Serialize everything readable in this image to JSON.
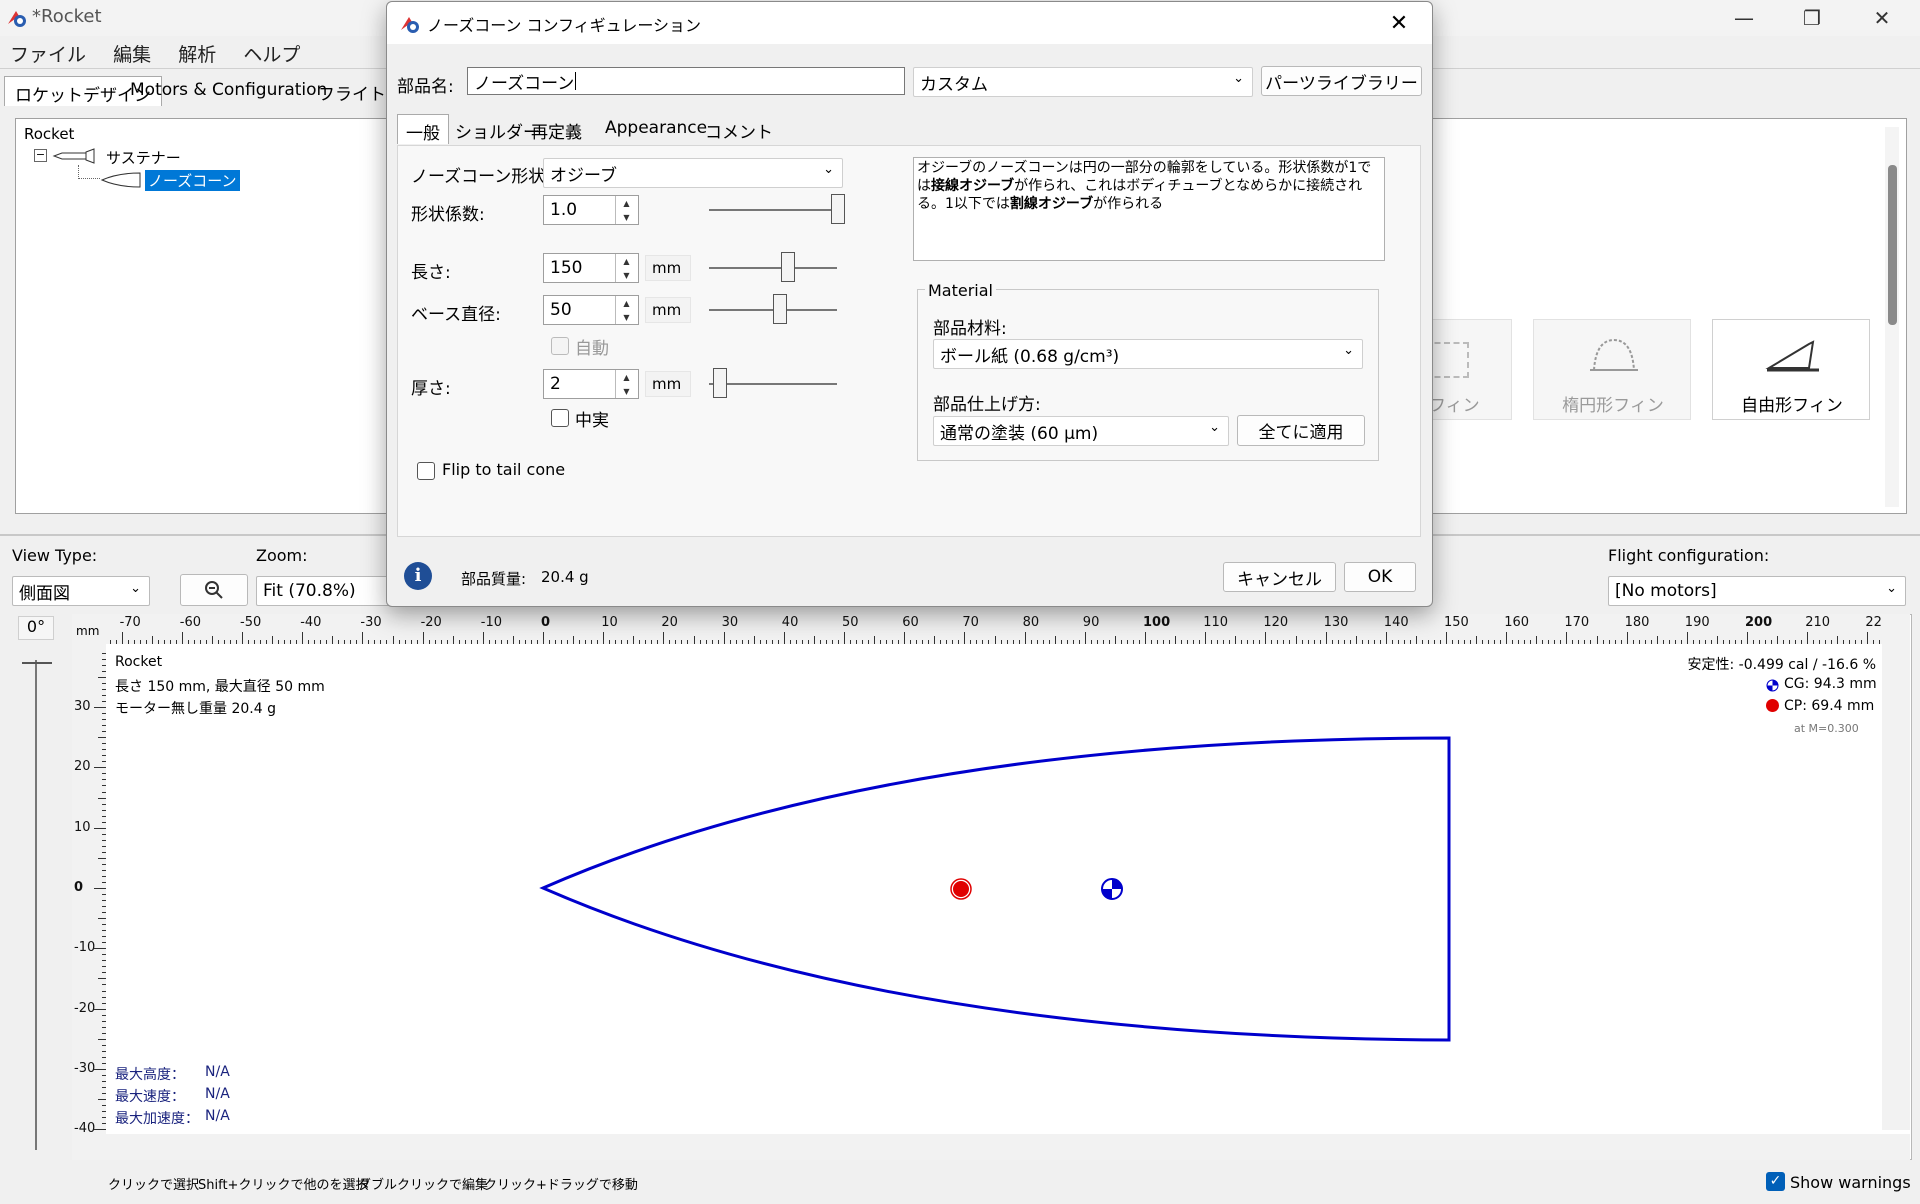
{
  "app": {
    "title": "*Rocket",
    "menu": [
      "ファイル",
      "編集",
      "解析",
      "ヘルプ"
    ],
    "tabs": [
      "ロケットデザイン",
      "Motors & Configuration",
      "フライトシミ"
    ]
  },
  "tree": {
    "root": "Rocket",
    "stage": "サステナー",
    "component": "ノーズコーン"
  },
  "fins": [
    {
      "label": "フィン"
    },
    {
      "label": "楕円形フィン"
    },
    {
      "label": "自由形フィン"
    }
  ],
  "view": {
    "view_type_label": "View Type:",
    "view_type_value": "側面図",
    "zoom_label": "Zoom:",
    "zoom_value": "Fit (70.8%)",
    "flight_config_label": "Flight configuration:",
    "flight_config_value": "[No motors]",
    "angle": "0°",
    "ruler_unit": "mm"
  },
  "ruler": {
    "h_labels": [
      "-70",
      "-60",
      "-50",
      "-40",
      "-30",
      "-20",
      "-10",
      "0",
      "10",
      "20",
      "30",
      "40",
      "50",
      "60",
      "70",
      "80",
      "90",
      "100",
      "110",
      "120",
      "130",
      "140",
      "150",
      "160",
      "170",
      "180",
      "190",
      "200",
      "210",
      "22"
    ],
    "v_labels": [
      "30",
      "20",
      "10",
      "0",
      "-10",
      "-20",
      "-30",
      "-40"
    ]
  },
  "figure": {
    "name": "Rocket",
    "dims": "長さ 150 mm, 最大直径 50 mm",
    "mass": "モーター無し重量 20.4 g",
    "stability": "安定性: -0.499 cal / -16.6 %",
    "cg": "CG: 94.3 mm",
    "cp": "CP: 69.4 mm",
    "mach": "at M=0.300",
    "alt_label": "最大高度：",
    "alt_value": "N/A",
    "vel_label": "最大速度：",
    "vel_value": "N/A",
    "acc_label": "最大加速度：",
    "acc_value": "N/A",
    "colors": {
      "outline": "#0000cc",
      "cp": "#e00000",
      "cg": "#0000cc"
    }
  },
  "status": {
    "hints": [
      "クリックで選択",
      "Shift+クリックで他のを選択",
      "ダブルクリックで編集",
      "クリック+ドラッグで移動"
    ],
    "show_warnings": "Show warnings"
  },
  "dialog": {
    "title": "ノーズコーン コンフィギュレーション",
    "name_label": "部品名:",
    "name_value": "ノーズコーン",
    "preset_value": "カスタム",
    "library_button": "パーツライブラリー",
    "tabs": [
      "一般",
      "ショルダー",
      "再定義",
      "Appearance",
      "コメント"
    ],
    "shape_label": "ノーズコーン形状:",
    "shape_value": "オジーブ",
    "param_label": "形状係数:",
    "param_value": "1.0",
    "length_label": "長さ:",
    "length_value": "150",
    "length_unit": "mm",
    "diameter_label": "ベース直径:",
    "diameter_value": "50",
    "diameter_unit": "mm",
    "auto_label": "自動",
    "thickness_label": "厚さ:",
    "thickness_value": "2",
    "thickness_unit": "mm",
    "filled_label": "中実",
    "flip_label": "Flip to tail cone",
    "description_1": "オジーブのノーズコーンは円の一部分の輪郭をしている。形状係数が1では",
    "description_bold_1": "接線オジーブ",
    "description_2": "が作られ、これはボディチューブとなめらかに接続される。1以",
    "description_3": "下では",
    "description_bold_2": "割線オジーブ",
    "description_4": "が作られる",
    "material_title": "Material",
    "material_label": "部品材料:",
    "material_value": "ボール紙 (0.68 g/cm³)",
    "finish_label": "部品仕上げ方:",
    "finish_value": "通常の塗装 (60 μm)",
    "apply_all": "全てに適用",
    "mass_label": "部品質量:",
    "mass_value": "20.4 g",
    "cancel": "キャンセル",
    "ok": "OK"
  }
}
